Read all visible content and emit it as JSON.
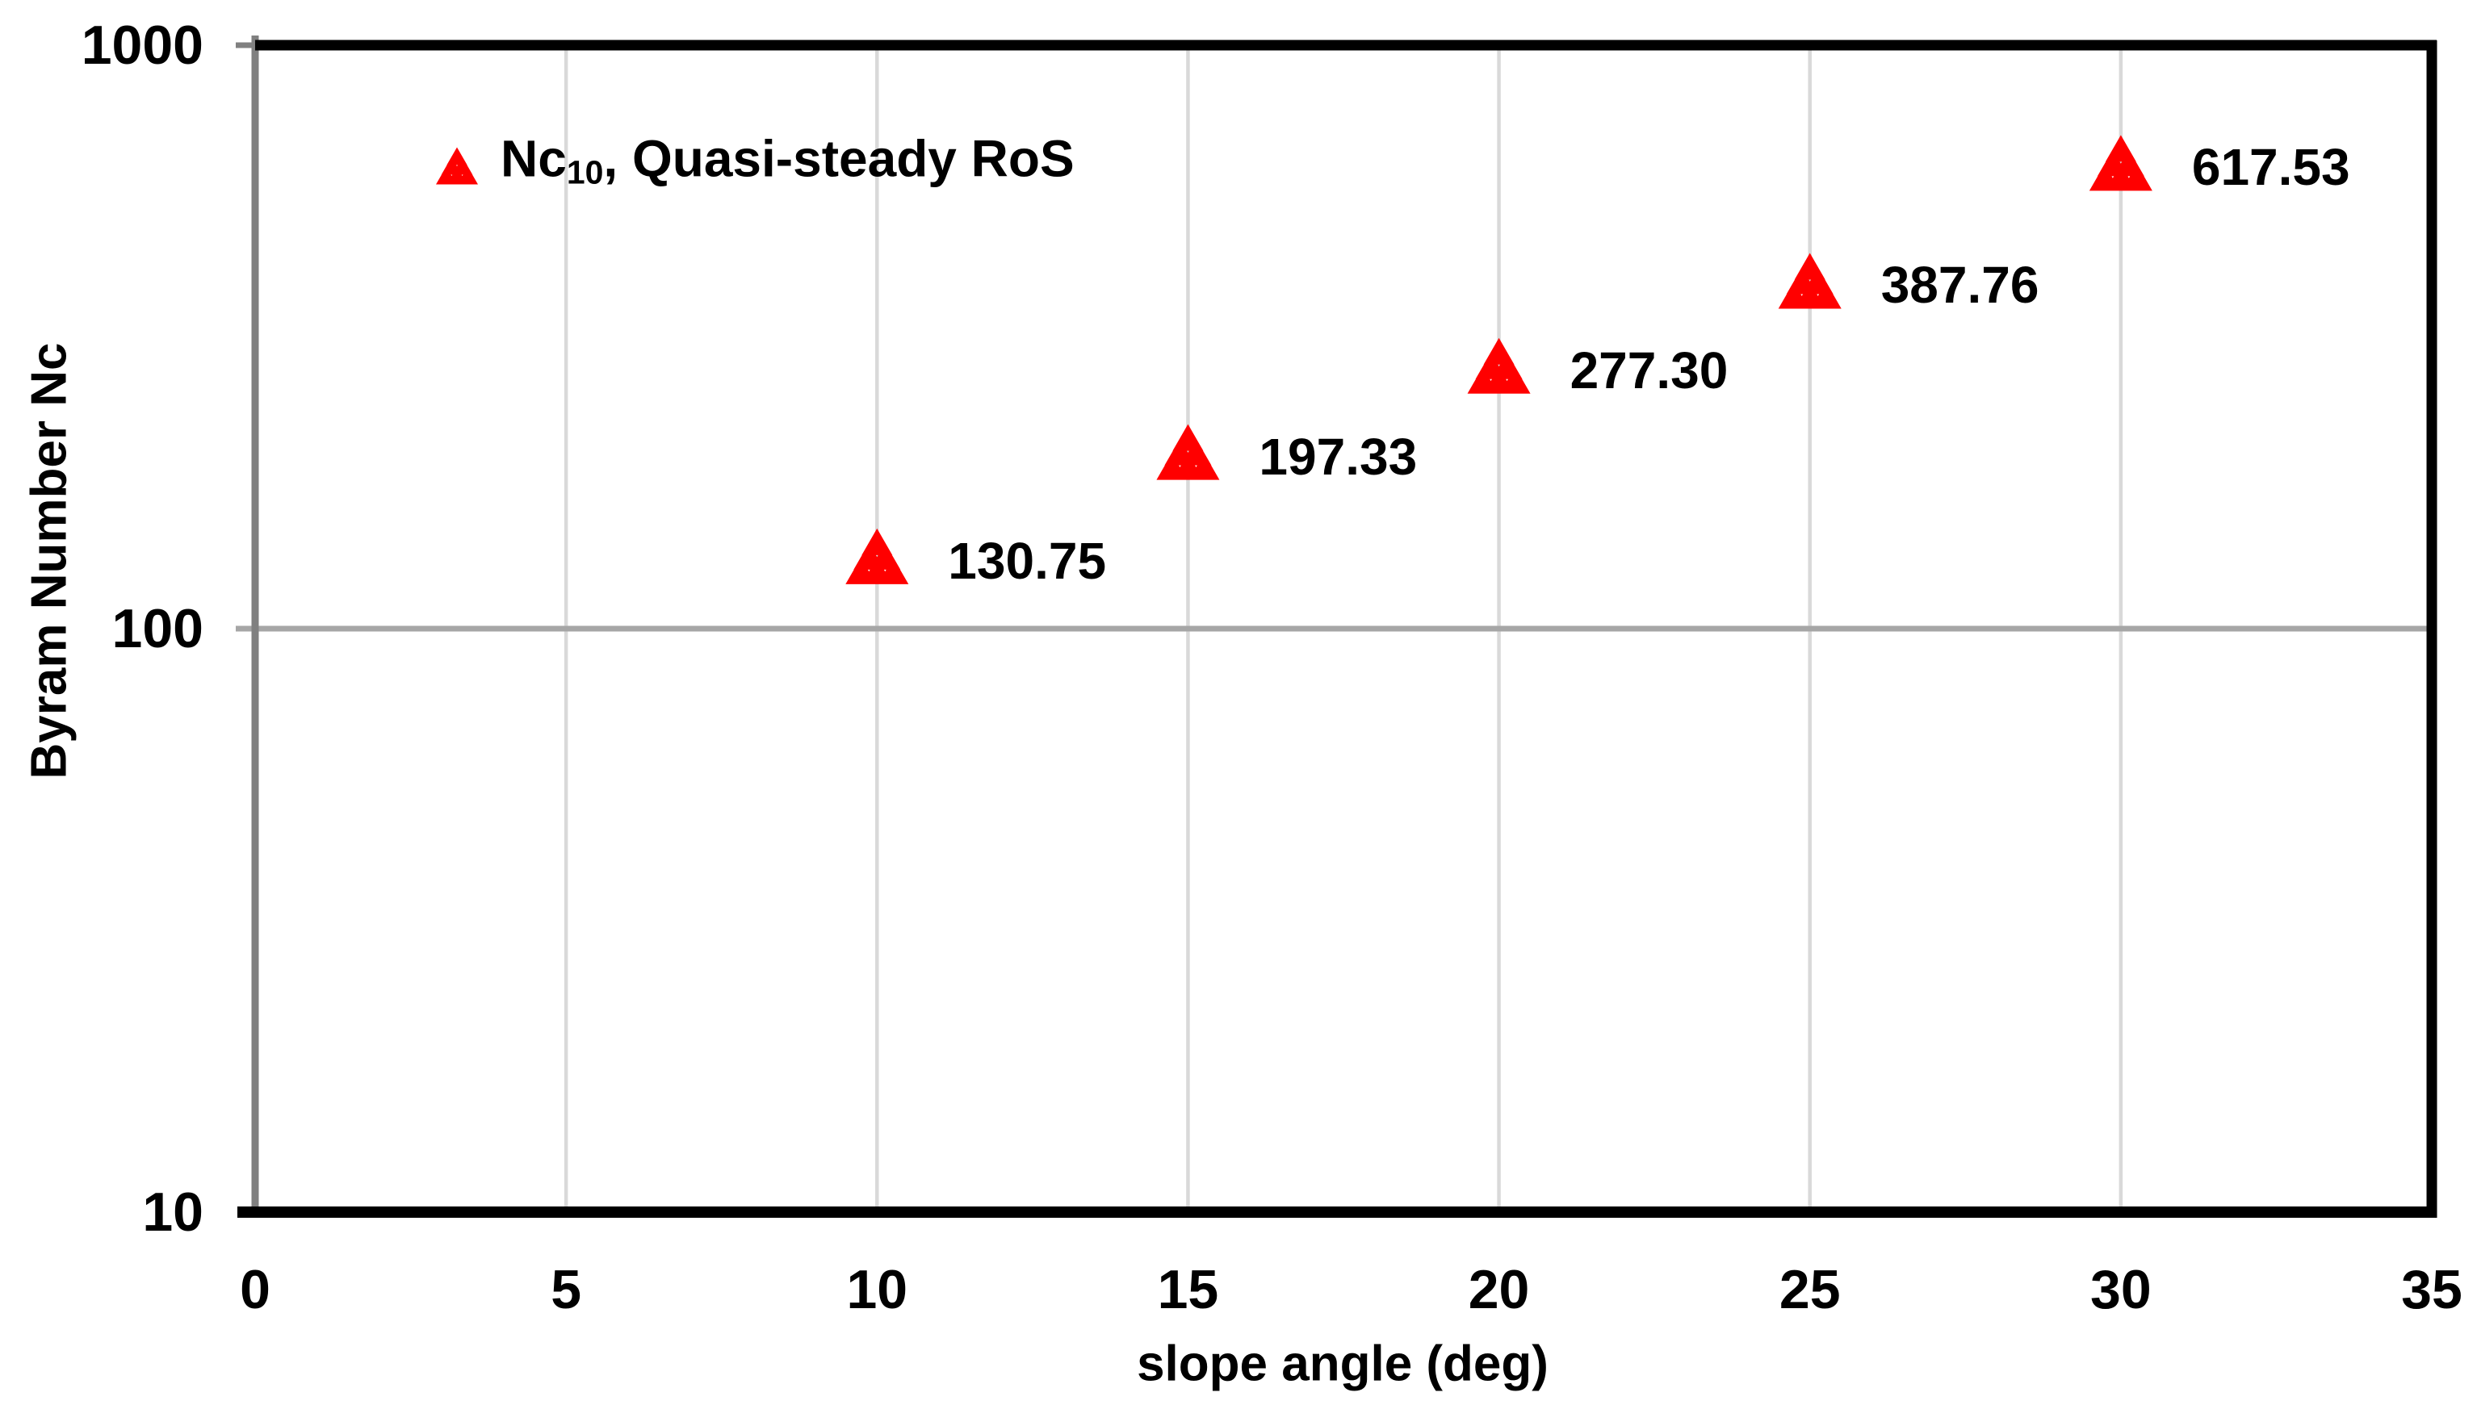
{
  "chart_data": {
    "type": "scatter",
    "title": "",
    "xlabel": "slope angle (deg)",
    "ylabel": "Byram Number Nc",
    "xlim": [
      0,
      35
    ],
    "ylim": [
      10,
      1000
    ],
    "yscale": "log",
    "x_ticks": [
      0,
      5,
      10,
      15,
      20,
      25,
      30,
      35
    ],
    "y_ticks": [
      10,
      100,
      1000
    ],
    "grid": {
      "vertical_x": [
        5,
        10,
        15,
        20,
        25,
        30
      ],
      "horizontal_y": [
        100
      ]
    },
    "legend": {
      "position": "top-left-inside",
      "marker": "red-triangle-cluster",
      "label_main": "Nc",
      "label_subscript": "10",
      "label_rest": ", Quasi-steady RoS"
    },
    "series": [
      {
        "name": "Nc10, Quasi-steady RoS",
        "marker": "triangle-cluster",
        "color": "#FF0000",
        "x": [
          10,
          15,
          20,
          25,
          30
        ],
        "y": [
          130.75,
          197.33,
          277.3,
          387.76,
          617.53
        ],
        "labels": [
          "130.75",
          "197.33",
          "277.30",
          "387.76",
          "617.53"
        ]
      }
    ]
  },
  "colors": {
    "marker_red": "#FF0000",
    "grid_light": "#D9D9D9",
    "grid_100": "#A6A6A6",
    "axis_gray": "#808080",
    "border_black": "#000000",
    "text": "#000000",
    "background": "#FFFFFF"
  }
}
